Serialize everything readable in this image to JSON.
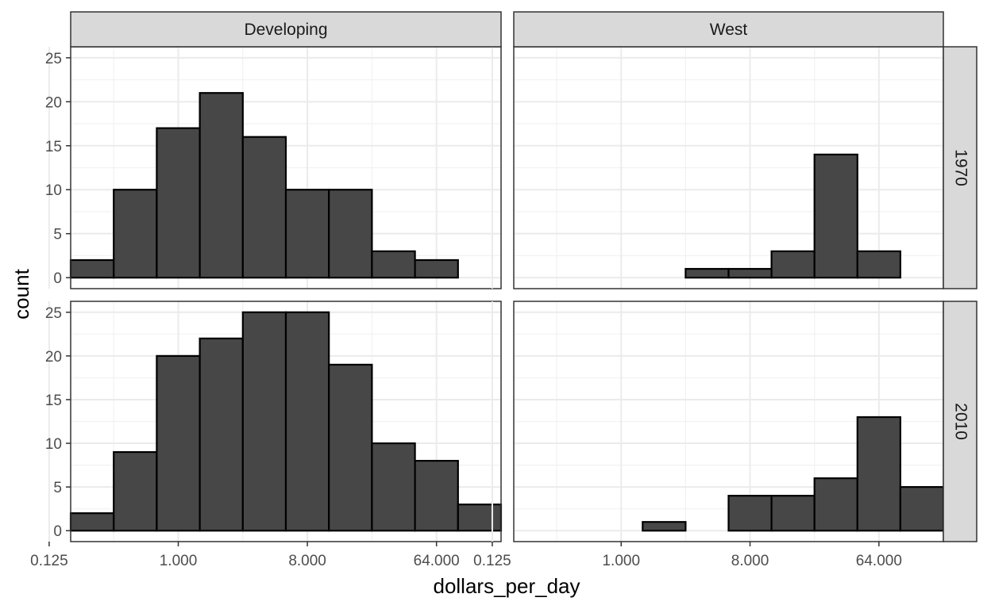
{
  "chart_data": {
    "type": "bar",
    "subtype": "faceted-histogram",
    "xlabel": "dollars_per_day",
    "ylabel": "count",
    "x_scale": "log2",
    "x_tick_values": [
      0.125,
      1,
      8,
      64
    ],
    "x_tick_labels": [
      "0.125",
      "1.000",
      "8.000",
      "64.000"
    ],
    "y_tick_values": [
      0,
      5,
      10,
      15,
      20,
      25
    ],
    "y_tick_labels": [
      "0",
      "5",
      "10",
      "15",
      "20",
      "25"
    ],
    "ylim": [
      0,
      25
    ],
    "grid": true,
    "bar_fill": "#474747",
    "bar_outline": "#000000",
    "columns": [
      "Developing",
      "West"
    ],
    "rows": [
      "1970",
      "2010"
    ],
    "bin_edges": [
      0.1768,
      0.3536,
      0.7071,
      1.4142,
      2.8284,
      5.6569,
      11.3137,
      22.6274,
      45.2548,
      90.5097,
      181.0193
    ],
    "panels": [
      {
        "column": "Developing",
        "row": "1970",
        "counts": [
          2,
          10,
          17,
          21,
          16,
          10,
          10,
          3,
          2,
          0
        ]
      },
      {
        "column": "West",
        "row": "1970",
        "counts": [
          0,
          0,
          0,
          0,
          1,
          1,
          3,
          14,
          3,
          0
        ]
      },
      {
        "column": "Developing",
        "row": "2010",
        "counts": [
          2,
          9,
          20,
          22,
          25,
          25,
          19,
          10,
          8,
          3
        ]
      },
      {
        "column": "West",
        "row": "2010",
        "counts": [
          0,
          0,
          0,
          1,
          0,
          4,
          4,
          6,
          13,
          5
        ]
      }
    ]
  },
  "colors": {
    "strip_fill": "#d9d9d9",
    "strip_border": "#333333",
    "panel_border": "#333333",
    "grid_major": "#ebebeb",
    "grid_minor": "#f2f2f2"
  }
}
